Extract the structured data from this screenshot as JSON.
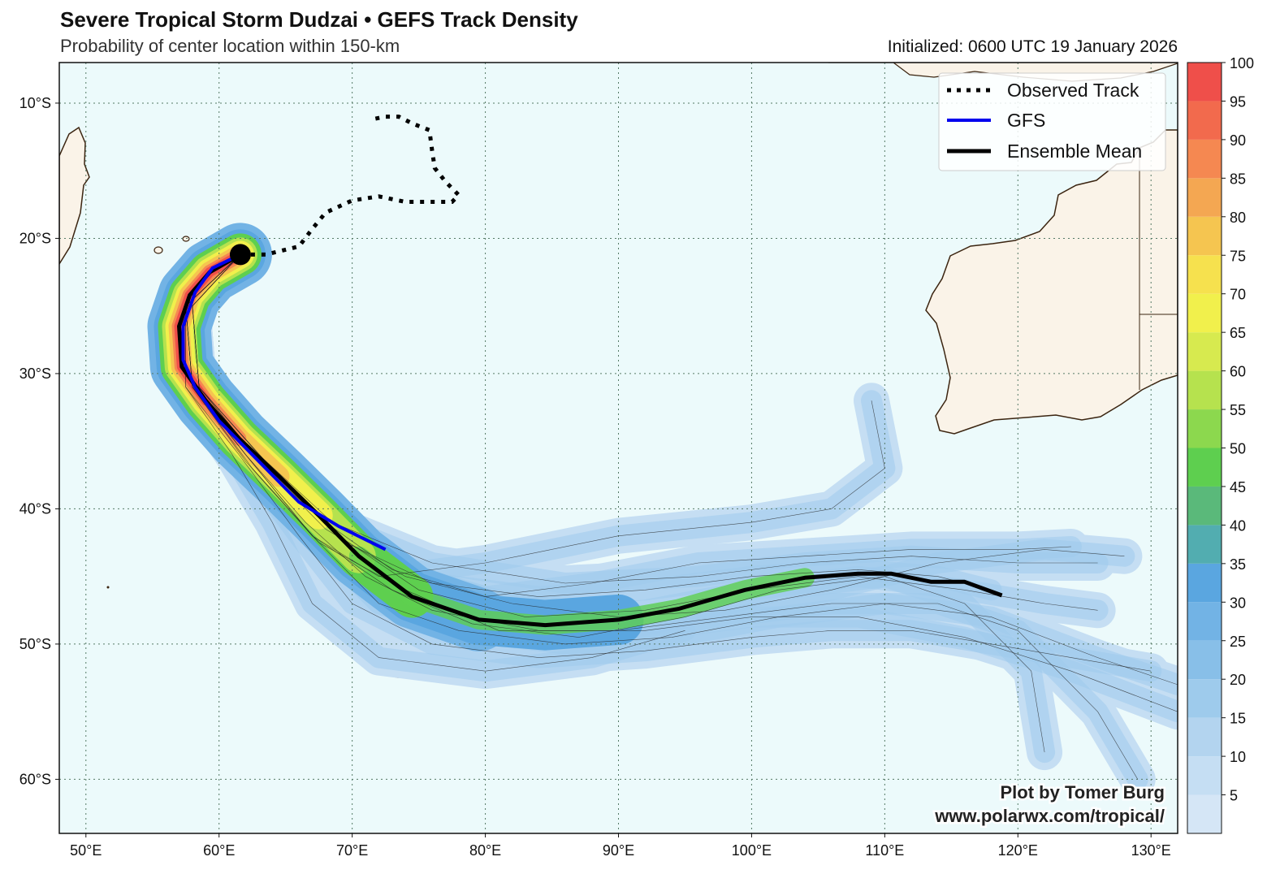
{
  "header": {
    "title": "Severe Tropical Storm Dudzai • GEFS Track Density",
    "subtitle": "Probability of center location within 150-km",
    "initialized": "Initialized: 0600 UTC 19 January 2026"
  },
  "map": {
    "lon_range": [
      48,
      132
    ],
    "lat_range": [
      -64,
      -7
    ],
    "lon_ticks": [
      {
        "value": 50,
        "label": "50°E"
      },
      {
        "value": 60,
        "label": "60°E"
      },
      {
        "value": 70,
        "label": "70°E"
      },
      {
        "value": 80,
        "label": "80°E"
      },
      {
        "value": 90,
        "label": "90°E"
      },
      {
        "value": 100,
        "label": "100°E"
      },
      {
        "value": 110,
        "label": "110°E"
      },
      {
        "value": 120,
        "label": "120°E"
      },
      {
        "value": 130,
        "label": "130°E"
      }
    ],
    "lat_ticks": [
      {
        "value": -10,
        "label": "10°S"
      },
      {
        "value": -20,
        "label": "20°S"
      },
      {
        "value": -30,
        "label": "30°S"
      },
      {
        "value": -40,
        "label": "40°S"
      },
      {
        "value": -50,
        "label": "50°S"
      },
      {
        "value": -60,
        "label": "60°S"
      }
    ],
    "ocean_color": "#ecfafb",
    "land_color": "#faf3e8",
    "coast_color": "#3b2410"
  },
  "tracks": {
    "observed": [
      [
        61.6,
        -21.2
      ],
      [
        63.5,
        -21.2
      ],
      [
        66,
        -20.6
      ],
      [
        67,
        -19.3
      ],
      [
        68,
        -18.1
      ],
      [
        70,
        -17.2
      ],
      [
        72,
        -16.9
      ],
      [
        74,
        -17.3
      ],
      [
        77.5,
        -17.3
      ],
      [
        78,
        -16.8
      ],
      [
        77,
        -15.8
      ],
      [
        76.2,
        -14.8
      ],
      [
        76,
        -13.5
      ],
      [
        75.8,
        -12
      ],
      [
        74.5,
        -11.5
      ],
      [
        73.5,
        -11
      ],
      [
        72.5,
        -11
      ],
      [
        71.5,
        -11.2
      ]
    ],
    "gfs": [
      [
        61.6,
        -21.2
      ],
      [
        59.5,
        -22.2
      ],
      [
        58.2,
        -24
      ],
      [
        57.3,
        -26.5
      ],
      [
        57.3,
        -29
      ],
      [
        58.2,
        -31
      ],
      [
        60,
        -33.5
      ],
      [
        62.5,
        -36
      ],
      [
        66,
        -39.5
      ],
      [
        69,
        -41.3
      ],
      [
        72.5,
        -43
      ]
    ],
    "ensemble_mean": [
      [
        61.6,
        -21.2
      ],
      [
        59.3,
        -22.5
      ],
      [
        57.8,
        -24.2
      ],
      [
        57,
        -26.5
      ],
      [
        57.2,
        -29.5
      ],
      [
        59,
        -32
      ],
      [
        61.5,
        -34.8
      ],
      [
        64.5,
        -37.6
      ],
      [
        67.5,
        -40.5
      ],
      [
        70.5,
        -43.5
      ],
      [
        74.5,
        -46.5
      ],
      [
        79.5,
        -48.2
      ],
      [
        84.5,
        -48.6
      ],
      [
        90,
        -48.2
      ],
      [
        94.5,
        -47.4
      ],
      [
        99.5,
        -46
      ],
      [
        104,
        -45.1
      ],
      [
        108,
        -44.8
      ],
      [
        110.5,
        -44.8
      ],
      [
        113.5,
        -45.4
      ],
      [
        116,
        -45.4
      ],
      [
        118.8,
        -46.4
      ]
    ],
    "ensemble_members": [
      [
        [
          61.6,
          -21.2
        ],
        [
          58,
          -25
        ],
        [
          58.5,
          -31
        ],
        [
          63,
          -36
        ],
        [
          68,
          -41
        ],
        [
          73,
          -44.5
        ],
        [
          80,
          -46.5
        ],
        [
          88,
          -45.5
        ],
        [
          96,
          -44
        ],
        [
          104,
          -43.5
        ],
        [
          112,
          -43
        ],
        [
          120,
          -43
        ],
        [
          124,
          -42.8
        ]
      ],
      [
        [
          61.6,
          -21.2
        ],
        [
          58,
          -25
        ],
        [
          58.5,
          -31
        ],
        [
          63.5,
          -36.5
        ],
        [
          69,
          -42
        ],
        [
          75,
          -46
        ],
        [
          83,
          -48
        ],
        [
          92,
          -47.5
        ],
        [
          100,
          -46
        ],
        [
          108,
          -45
        ],
        [
          116,
          -46
        ],
        [
          122,
          -47
        ],
        [
          126,
          -47.5
        ]
      ],
      [
        [
          61.6,
          -21.2
        ],
        [
          57.5,
          -25
        ],
        [
          57.5,
          -31
        ],
        [
          61.5,
          -36
        ],
        [
          66,
          -42
        ],
        [
          70,
          -47
        ],
        [
          76,
          -50
        ],
        [
          84,
          -51
        ],
        [
          92,
          -50.5
        ],
        [
          100,
          -49.5
        ],
        [
          106,
          -49
        ],
        [
          112,
          -49
        ],
        [
          118,
          -50
        ],
        [
          124,
          -51
        ],
        [
          130,
          -52
        ]
      ],
      [
        [
          61.6,
          -21.2
        ],
        [
          57.5,
          -25
        ],
        [
          58,
          -31
        ],
        [
          62,
          -36
        ],
        [
          67,
          -42
        ],
        [
          72,
          -45
        ],
        [
          80,
          -44
        ],
        [
          90,
          -42
        ],
        [
          100,
          -41
        ],
        [
          106,
          -40
        ],
        [
          110,
          -37
        ],
        [
          109,
          -32
        ]
      ],
      [
        [
          61.6,
          -21.2
        ],
        [
          57.5,
          -25
        ],
        [
          58,
          -31
        ],
        [
          62,
          -36.5
        ],
        [
          67,
          -42
        ],
        [
          73,
          -46
        ],
        [
          79,
          -48.5
        ],
        [
          87,
          -49.5
        ],
        [
          95,
          -48
        ],
        [
          102,
          -46
        ],
        [
          110,
          -45
        ],
        [
          116,
          -47
        ],
        [
          121,
          -52
        ],
        [
          122,
          -58
        ]
      ],
      [
        [
          61.6,
          -21.2
        ],
        [
          57.5,
          -25
        ],
        [
          58,
          -31
        ],
        [
          62,
          -36
        ],
        [
          67,
          -42
        ],
        [
          72,
          -47
        ],
        [
          78,
          -49
        ],
        [
          86,
          -50
        ],
        [
          94,
          -49.5
        ],
        [
          102,
          -48
        ],
        [
          110,
          -47
        ],
        [
          118,
          -48
        ],
        [
          126,
          -51
        ],
        [
          132,
          -53
        ]
      ],
      [
        [
          61.6,
          -21.2
        ],
        [
          58,
          -25
        ],
        [
          58.5,
          -31
        ],
        [
          63,
          -36
        ],
        [
          68.5,
          -41
        ],
        [
          76,
          -44
        ],
        [
          86,
          -45.5
        ],
        [
          96,
          -45
        ],
        [
          104,
          -44
        ],
        [
          112,
          -43.5
        ],
        [
          120,
          -44
        ],
        [
          126,
          -44
        ]
      ],
      [
        [
          61.6,
          -21.2
        ],
        [
          57.5,
          -25
        ],
        [
          57.5,
          -31
        ],
        [
          61,
          -36
        ],
        [
          64,
          -41
        ],
        [
          67,
          -47
        ],
        [
          72,
          -51
        ],
        [
          80,
          -52
        ],
        [
          88,
          -51
        ],
        [
          95,
          -49
        ]
      ],
      [
        [
          61.6,
          -21.2
        ],
        [
          57.5,
          -25
        ],
        [
          58,
          -31
        ],
        [
          62.5,
          -37
        ],
        [
          67.5,
          -42.5
        ],
        [
          74,
          -46
        ],
        [
          81,
          -49
        ],
        [
          90,
          -49
        ],
        [
          98,
          -48
        ],
        [
          106,
          -47
        ],
        [
          114,
          -47
        ],
        [
          120,
          -49
        ],
        [
          126,
          -55
        ],
        [
          129,
          -60
        ]
      ],
      [
        [
          61.6,
          -21.2
        ],
        [
          58,
          -25
        ],
        [
          58.5,
          -31
        ],
        [
          63,
          -36.5
        ],
        [
          68,
          -41.5
        ],
        [
          74,
          -45
        ],
        [
          82,
          -47
        ],
        [
          90,
          -48
        ],
        [
          98,
          -47.5
        ],
        [
          106,
          -46
        ],
        [
          114,
          -44
        ],
        [
          122,
          -43
        ],
        [
          128,
          -43.5
        ]
      ],
      [
        [
          61.6,
          -21.2
        ],
        [
          57.5,
          -25
        ],
        [
          58,
          -31
        ],
        [
          62,
          -36
        ],
        [
          66.5,
          -41
        ],
        [
          71,
          -45
        ],
        [
          76,
          -47.5
        ],
        [
          84,
          -49
        ],
        [
          92,
          -49
        ],
        [
          100,
          -48
        ],
        [
          108,
          -48
        ],
        [
          116,
          -49.5
        ],
        [
          124,
          -52
        ],
        [
          132,
          -55
        ]
      ],
      [
        [
          61.6,
          -21.2
        ],
        [
          58,
          -25
        ],
        [
          58.5,
          -31
        ],
        [
          63.5,
          -37
        ],
        [
          69.5,
          -42.5
        ],
        [
          76,
          -45.5
        ],
        [
          84,
          -46.5
        ],
        [
          92,
          -46
        ],
        [
          100,
          -45
        ],
        [
          108,
          -44.5
        ],
        [
          114,
          -45
        ],
        [
          118,
          -46
        ]
      ]
    ]
  },
  "density_legend": {
    "ticks": [
      "100",
      "95",
      "90",
      "85",
      "80",
      "75",
      "70",
      "65",
      "60",
      "55",
      "50",
      "45",
      "40",
      "35",
      "30",
      "25",
      "20",
      "15",
      "10",
      "5"
    ],
    "colors": [
      "#d5e6f6",
      "#c5def3",
      "#b3d4ef",
      "#9ecbec",
      "#88bfe8",
      "#72b3e5",
      "#5aa6e0",
      "#52adb0",
      "#5ab97a",
      "#5ecf4f",
      "#8cd84e",
      "#b6e24e",
      "#d7ea4f",
      "#f1f04c",
      "#f6e14e",
      "#f5c550",
      "#f4a752",
      "#f58851",
      "#f26a4d",
      "#ef4f4a"
    ]
  },
  "legend": {
    "observed_label": "Observed Track",
    "gfs_label": "GFS",
    "ensemble_label": "Ensemble Mean"
  },
  "credit": {
    "line1": "Plot by Tomer Burg",
    "line2": "www.polarwx.com/tropical/"
  }
}
